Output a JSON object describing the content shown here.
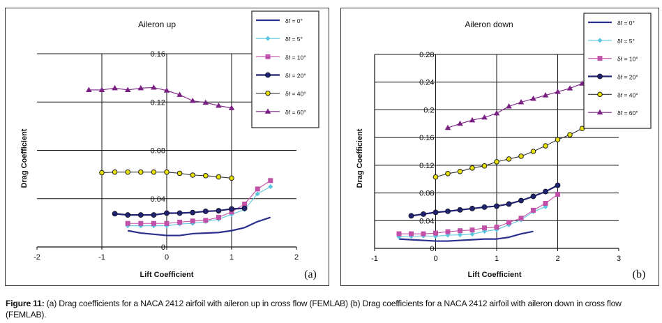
{
  "chart_data": [
    {
      "type": "line",
      "title": "Aileron up",
      "xlabel": "Lift Coefficient",
      "ylabel": "Drag Coefficient",
      "panel_label": "(a)",
      "xlim": [
        -2,
        2
      ],
      "ylim": [
        0,
        0.16
      ],
      "xticks": [
        "-2",
        "-1",
        "0",
        "1",
        "2"
      ],
      "xtick_values": [
        -2,
        -1,
        0,
        1,
        2
      ],
      "yticks": [
        "0",
        "0.04",
        "0.08",
        "0.12",
        "0.16"
      ],
      "ytick_values": [
        0,
        0.04,
        0.08,
        0.12,
        0.16
      ],
      "grid": true,
      "legend_position": "top-right",
      "series": [
        {
          "name": "δf = 0°",
          "color": "#2b2f8f",
          "marker": "none",
          "x": [
            -0.6,
            -0.4,
            -0.2,
            0,
            0.2,
            0.4,
            0.6,
            0.8,
            1.0,
            1.2,
            1.4,
            1.6
          ],
          "y": [
            0.0135,
            0.0115,
            0.0105,
            0.0095,
            0.0095,
            0.011,
            0.0115,
            0.012,
            0.0135,
            0.016,
            0.021,
            0.0245
          ]
        },
        {
          "name": "δf = 5°",
          "color": "#5bc6e0",
          "marker": "diamond",
          "x": [
            -0.6,
            -0.4,
            -0.2,
            0,
            0.2,
            0.4,
            0.6,
            0.8,
            1.0,
            1.2,
            1.4,
            1.6
          ],
          "y": [
            0.0175,
            0.0175,
            0.0175,
            0.0175,
            0.019,
            0.0195,
            0.021,
            0.023,
            0.027,
            0.031,
            0.044,
            0.05
          ]
        },
        {
          "name": "δf = 10°",
          "color": "#c050a8",
          "marker": "square",
          "x": [
            -0.6,
            -0.4,
            -0.2,
            0,
            0.2,
            0.4,
            0.6,
            0.8,
            1.0,
            1.2,
            1.4,
            1.6
          ],
          "y": [
            0.0195,
            0.0195,
            0.0195,
            0.0195,
            0.0205,
            0.0215,
            0.022,
            0.0245,
            0.029,
            0.0355,
            0.048,
            0.055
          ]
        },
        {
          "name": "δf = 20°",
          "color": "#1f2370",
          "marker": "circle",
          "x": [
            -0.8,
            -0.6,
            -0.4,
            -0.2,
            0,
            0.2,
            0.4,
            0.6,
            0.8,
            1.0,
            1.2
          ],
          "y": [
            0.0275,
            0.0265,
            0.0265,
            0.0265,
            0.028,
            0.028,
            0.0285,
            0.0295,
            0.03,
            0.0315,
            0.032
          ]
        },
        {
          "name": "δf = 40°",
          "color": "#e8e000",
          "line_color": "#333333",
          "marker": "circle-open",
          "x": [
            -1.0,
            -0.8,
            -0.6,
            -0.4,
            -0.2,
            0,
            0.2,
            0.4,
            0.6,
            0.8,
            1.0
          ],
          "y": [
            0.0615,
            0.062,
            0.062,
            0.062,
            0.062,
            0.062,
            0.061,
            0.0595,
            0.059,
            0.058,
            0.057
          ]
        },
        {
          "name": "δf = 60°",
          "color": "#7b2083",
          "marker": "triangle",
          "x": [
            -1.2,
            -1.0,
            -0.8,
            -0.6,
            -0.4,
            -0.2,
            0,
            0.2,
            0.4,
            0.6,
            0.8,
            1.0
          ],
          "y": [
            0.13,
            0.13,
            0.1315,
            0.13,
            0.1315,
            0.132,
            0.1295,
            0.126,
            0.121,
            0.1195,
            0.117,
            0.115
          ]
        }
      ]
    },
    {
      "type": "line",
      "title": "Aileron down",
      "xlabel": "Lift Coefficient",
      "ylabel": "Drag Coefficient",
      "panel_label": "(b)",
      "xlim": [
        -1,
        3
      ],
      "ylim": [
        0,
        0.28
      ],
      "xticks": [
        "-1",
        "0",
        "1",
        "2",
        "3"
      ],
      "xtick_values": [
        -1,
        0,
        1,
        2,
        3
      ],
      "yticks": [
        "0",
        "0.04",
        "0.08",
        "0.12",
        "0.16",
        "0.2",
        "0.24",
        "0.28"
      ],
      "ytick_values": [
        0,
        0.04,
        0.08,
        0.12,
        0.16,
        0.2,
        0.24,
        0.28
      ],
      "grid": true,
      "legend_position": "top-right",
      "series": [
        {
          "name": "δf = 0°",
          "color": "#2b2f8f",
          "marker": "none",
          "x": [
            -0.6,
            -0.4,
            -0.2,
            0,
            0.2,
            0.4,
            0.6,
            0.8,
            1.0,
            1.2,
            1.4,
            1.6
          ],
          "y": [
            0.0135,
            0.0125,
            0.0115,
            0.0105,
            0.0105,
            0.0115,
            0.0125,
            0.0135,
            0.0135,
            0.016,
            0.021,
            0.0245
          ]
        },
        {
          "name": "δf = 5°",
          "color": "#5bc6e0",
          "marker": "diamond",
          "x": [
            -0.6,
            -0.4,
            -0.2,
            0,
            0.2,
            0.4,
            0.6,
            0.8,
            1.0,
            1.2,
            1.4,
            1.6,
            1.8
          ],
          "y": [
            0.0165,
            0.0175,
            0.018,
            0.0175,
            0.019,
            0.0195,
            0.0205,
            0.0245,
            0.027,
            0.034,
            0.041,
            0.053,
            0.06
          ]
        },
        {
          "name": "δf = 10°",
          "color": "#c050a8",
          "marker": "square",
          "x": [
            -0.6,
            -0.4,
            -0.2,
            0,
            0.2,
            0.4,
            0.6,
            0.8,
            1.0,
            1.2,
            1.4,
            1.6,
            1.8,
            2.0
          ],
          "y": [
            0.021,
            0.021,
            0.021,
            0.022,
            0.024,
            0.0255,
            0.0265,
            0.0295,
            0.0305,
            0.0375,
            0.0435,
            0.055,
            0.065,
            0.078
          ]
        },
        {
          "name": "δf = 20°",
          "color": "#1f2370",
          "marker": "circle",
          "x": [
            -0.4,
            -0.2,
            0,
            0.2,
            0.4,
            0.6,
            0.8,
            1.0,
            1.2,
            1.4,
            1.6,
            1.8,
            2.0
          ],
          "y": [
            0.047,
            0.0495,
            0.052,
            0.0535,
            0.0555,
            0.0575,
            0.0595,
            0.061,
            0.064,
            0.069,
            0.075,
            0.082,
            0.091
          ]
        },
        {
          "name": "δf = 40°",
          "color": "#e8e000",
          "line_color": "#333333",
          "marker": "circle-open",
          "x": [
            0,
            0.2,
            0.4,
            0.6,
            0.8,
            1.0,
            1.2,
            1.4,
            1.6,
            1.8,
            2.0,
            2.2,
            2.4
          ],
          "y": [
            0.103,
            0.108,
            0.111,
            0.116,
            0.119,
            0.125,
            0.129,
            0.133,
            0.14,
            0.148,
            0.157,
            0.164,
            0.173
          ]
        },
        {
          "name": "δf = 60°",
          "color": "#7b2083",
          "marker": "triangle",
          "x": [
            0.2,
            0.4,
            0.6,
            0.8,
            1.0,
            1.2,
            1.4,
            1.6,
            1.8,
            2.0,
            2.2,
            2.4
          ],
          "y": [
            0.174,
            0.18,
            0.185,
            0.189,
            0.195,
            0.205,
            0.211,
            0.216,
            0.221,
            0.226,
            0.231,
            0.238
          ]
        }
      ]
    }
  ],
  "caption": {
    "label": "Figure 11:",
    "text": " (a) Drag coefficients for a NACA 2412 airfoil with aileron up in cross flow (FEMLAB) (b) Drag coefficients for a NACA 2412 airfoil with aileron down in cross flow (FEMLAB)."
  }
}
